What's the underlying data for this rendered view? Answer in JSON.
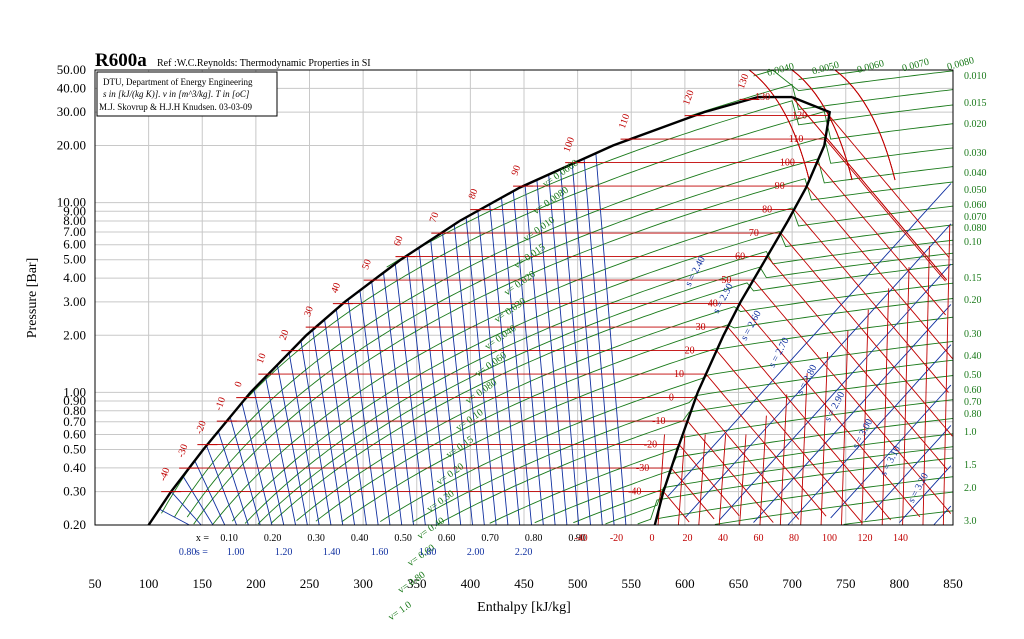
{
  "chart_data": {
    "type": "line",
    "title": "R600a",
    "reference": "Ref :W.C.Reynolds: Thermodynamic Properties in SI",
    "info_lines": [
      "DTU, Department of Energy Engineering",
      "s in [kJ/(kg K)]. v in [m^3/kg]. T in [oC]",
      "M.J. Skovrup & H.J.H Knudsen. 03-03-09"
    ],
    "xlabel": "Enthalpy [kJ/kg]",
    "ylabel": "Pressure [Bar]",
    "xlim": [
      50,
      850
    ],
    "ylim": [
      0.2,
      50
    ],
    "y_scale": "log",
    "grid": true,
    "x_ticks": [
      "50",
      "100",
      "150",
      "200",
      "250",
      "300",
      "350",
      "400",
      "450",
      "500",
      "550",
      "600",
      "650",
      "700",
      "750",
      "800",
      "850"
    ],
    "y_ticks": [
      "0.20",
      "0.30",
      "0.40",
      "0.50",
      "0.60",
      "0.70",
      "0.80",
      "0.90",
      "1.00",
      "2.00",
      "3.00",
      "4.00",
      "5.00",
      "6.00",
      "7.00",
      "8.00",
      "9.00",
      "10.00",
      "20.00",
      "30.00",
      "40.00",
      "50.00"
    ],
    "quality_row": {
      "label": "x = ",
      "values": [
        "0.10",
        "0.20",
        "0.30",
        "0.40",
        "0.50",
        "0.60",
        "0.70",
        "0.80",
        "0.90"
      ]
    },
    "entropy_row": {
      "label": "s = ",
      "values": [
        "0.80",
        "1.00",
        "1.20",
        "1.40",
        "1.60",
        "1.80",
        "2.00",
        "2.20"
      ]
    },
    "temperature_row": [
      "-40",
      "-20",
      "0",
      "20",
      "40",
      "60",
      "80",
      "100",
      "120",
      "140"
    ],
    "saturation": {
      "pressure": [
        0.2,
        0.3,
        0.5,
        1.0,
        2.0,
        3.0,
        5.0,
        8.0,
        12.0,
        20.0,
        30.0,
        36.0
      ],
      "h_liquid": [
        100,
        121,
        151,
        195,
        247,
        283,
        335,
        390,
        446,
        533,
        618,
        668
      ],
      "h_vapor": [
        572,
        580,
        593,
        612,
        636,
        652,
        675,
        696,
        713,
        730,
        735,
        700
      ]
    },
    "liquid_temperature_labels": [
      "-40",
      "-30",
      "-20",
      "-10",
      "0",
      "10",
      "20",
      "30",
      "40",
      "50",
      "60",
      "70",
      "80",
      "90",
      "100",
      "110",
      "120",
      "130"
    ],
    "vapor_temperature_labels": [
      "-40",
      "-30",
      "-20",
      "-10",
      "0",
      "10",
      "20",
      "30",
      "40",
      "50",
      "60",
      "70",
      "80",
      "90",
      "100",
      "110",
      "120",
      "130"
    ],
    "entropy_labels": [
      "s = 2.40",
      "s = 2.50",
      "s = 2.60",
      "s = 2.70",
      "s = 2.80",
      "s = 2.90",
      "s = 3.00",
      "s = 3.10",
      "s = 3.20"
    ],
    "volume_labels_inside": [
      "v= 0.0060",
      "v= 0.0080",
      "v= 0.010",
      "v= 0.015",
      "v= 0.020",
      "v= 0.030",
      "v= 0.040",
      "v= 0.060",
      "v= 0.080",
      "v= 0.10",
      "v= 0.15",
      "v= 0.20",
      "v= 0.30",
      "v= 0.40",
      "v= 0.60",
      "v= 0.80",
      "v= 1.0"
    ],
    "volume_labels_top": [
      "0.0040",
      "0.0050",
      "0.0060",
      "0.0070",
      "0.0080"
    ],
    "volume_labels_right": [
      "0.010",
      "0.015",
      "0.020",
      "0.030",
      "0.040",
      "0.050",
      "0.060",
      "0.070",
      "0.080",
      "0.10",
      "0.15",
      "0.20",
      "0.30",
      "0.40",
      "0.50",
      "0.60",
      "0.70",
      "0.80",
      "1.0",
      "1.5",
      "2.0",
      "3.0"
    ],
    "colors": {
      "isochore": "#1a7a1a",
      "isotherm": "#c00000",
      "isentrope": "#1030a0",
      "saturation": "#000000",
      "grid": "#c8c8c8"
    }
  }
}
